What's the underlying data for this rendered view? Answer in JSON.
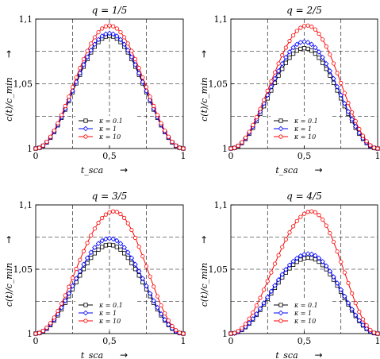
{
  "chart_data": [
    {
      "type": "line",
      "title": "q = 1/5",
      "xlabel": "t_sca",
      "ylabel": "c(t)/c_min",
      "xlim": [
        0,
        1
      ],
      "ylim": [
        1,
        1.1
      ],
      "x_ticks": [
        "0",
        "0,5",
        "1"
      ],
      "y_ticks": [
        "1",
        "1,05",
        "1,1"
      ],
      "x_gridlines": [
        0.25,
        0.5,
        0.75
      ],
      "y_gridlines": [
        1.025,
        1.05,
        1.075
      ],
      "grid": true,
      "legend_position": "bottom-center",
      "series": [
        {
          "name": "κ = 0.1",
          "color": "#000000",
          "marker": "square",
          "peak_x": 0.5,
          "peak_y": 1.087
        },
        {
          "name": "κ = 1",
          "color": "#0000ff",
          "marker": "diamond",
          "peak_x": 0.5,
          "peak_y": 1.089
        },
        {
          "name": "κ = 10",
          "color": "#ff0000",
          "marker": "circle",
          "peak_x": 0.5,
          "peak_y": 1.095
        }
      ]
    },
    {
      "type": "line",
      "title": "q = 2/5",
      "xlabel": "t_sca",
      "ylabel": "c(t)/c_min",
      "xlim": [
        0,
        1
      ],
      "ylim": [
        1,
        1.1
      ],
      "x_ticks": [
        "0",
        "0,5",
        "1"
      ],
      "y_ticks": [
        "1",
        "1,05",
        "1,1"
      ],
      "x_gridlines": [
        0.25,
        0.5,
        0.75
      ],
      "y_gridlines": [
        1.025,
        1.05,
        1.075
      ],
      "grid": true,
      "legend_position": "bottom-right",
      "series": [
        {
          "name": "κ = 0.1",
          "color": "#000000",
          "marker": "square",
          "peak_x": 0.5,
          "peak_y": 1.0775
        },
        {
          "name": "κ = 1",
          "color": "#0000ff",
          "marker": "diamond",
          "peak_x": 0.5,
          "peak_y": 1.0825
        },
        {
          "name": "κ = 10",
          "color": "#ff0000",
          "marker": "circle",
          "peak_x": 0.52,
          "peak_y": 1.095
        }
      ]
    },
    {
      "type": "line",
      "title": "q = 3/5",
      "xlabel": "t_sca",
      "ylabel": "c(t)/c_min",
      "xlim": [
        0,
        1
      ],
      "ylim": [
        1,
        1.1
      ],
      "x_ticks": [
        "0",
        "0,5",
        "1"
      ],
      "y_ticks": [
        "1",
        "1,05",
        "1,1"
      ],
      "x_gridlines": [
        0.25,
        0.5,
        0.75
      ],
      "y_gridlines": [
        1.025,
        1.05,
        1.075
      ],
      "grid": true,
      "legend_position": "bottom-center",
      "series": [
        {
          "name": "κ = 0.1",
          "color": "#000000",
          "marker": "square",
          "peak_x": 0.5,
          "peak_y": 1.069
        },
        {
          "name": "κ = 1",
          "color": "#0000ff",
          "marker": "diamond",
          "peak_x": 0.5,
          "peak_y": 1.074
        },
        {
          "name": "κ = 10",
          "color": "#ff0000",
          "marker": "circle",
          "peak_x": 0.53,
          "peak_y": 1.095
        }
      ]
    },
    {
      "type": "line",
      "title": "q = 4/5",
      "xlabel": "t_sca",
      "ylabel": "c(t)/c_min",
      "xlim": [
        0,
        1
      ],
      "ylim": [
        1,
        1.1
      ],
      "x_ticks": [
        "0",
        "0,5",
        "1"
      ],
      "y_ticks": [
        "1",
        "1,05",
        "1,1"
      ],
      "x_gridlines": [
        0.25,
        0.5,
        0.75
      ],
      "y_gridlines": [
        1.025,
        1.05,
        1.075
      ],
      "grid": true,
      "legend_position": "bottom-right",
      "series": [
        {
          "name": "κ = 0.1",
          "color": "#000000",
          "marker": "square",
          "peak_x": 0.53,
          "peak_y": 1.059
        },
        {
          "name": "κ = 1",
          "color": "#0000ff",
          "marker": "diamond",
          "peak_x": 0.53,
          "peak_y": 1.062
        },
        {
          "name": "κ = 10",
          "color": "#ff0000",
          "marker": "circle",
          "peak_x": 0.55,
          "peak_y": 1.095
        }
      ]
    }
  ]
}
